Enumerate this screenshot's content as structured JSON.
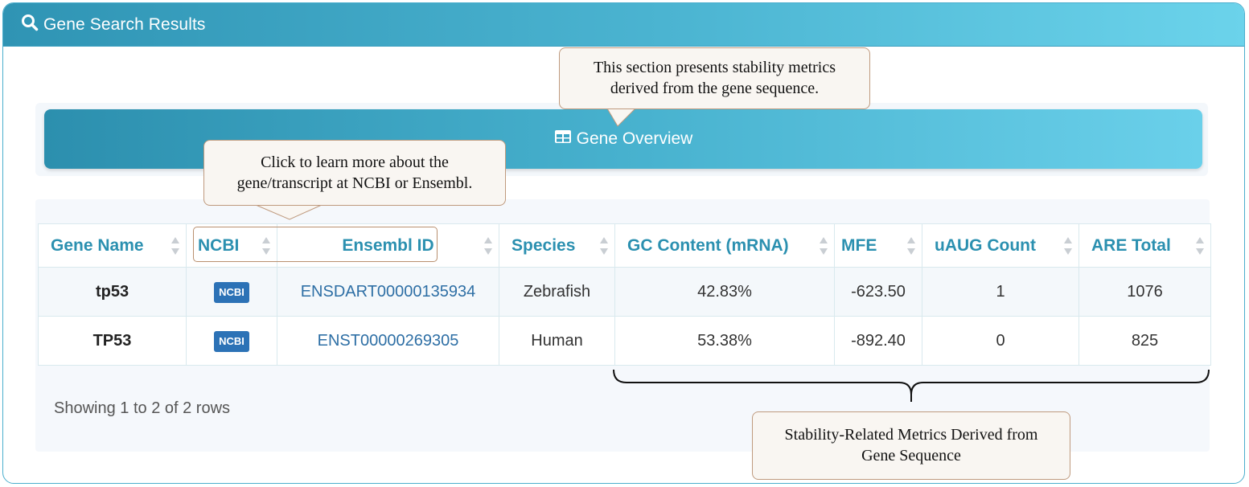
{
  "header": {
    "title": "Gene Search Results",
    "icon": "search-icon"
  },
  "overview": {
    "label": "Gene Overview",
    "icon": "table-icon"
  },
  "table": {
    "columns": [
      "Gene Name",
      "NCBI",
      "Ensembl ID",
      "Species",
      "GC Content (mRNA)",
      "MFE",
      "uAUG Count",
      "ARE Total"
    ],
    "rows": [
      {
        "gene": "tp53",
        "ncbi": "NCBI",
        "ensembl": "ENSDART00000135934",
        "species": "Zebrafish",
        "gc": "42.83%",
        "mfe": "-623.50",
        "uaug": "1",
        "are": "1076"
      },
      {
        "gene": "TP53",
        "ncbi": "NCBI",
        "ensembl": "ENST00000269305",
        "species": "Human",
        "gc": "53.38%",
        "mfe": "-892.40",
        "uaug": "0",
        "are": "825"
      }
    ]
  },
  "footer": {
    "pagination_text": "Showing 1 to 2 of 2 rows"
  },
  "callouts": {
    "overview_note": "This section presents stability metrics derived from the gene sequence.",
    "link_note": "Click to learn more about the gene/transcript at NCBI or Ensembl.",
    "metrics_note": "Stability-Related Metrics Derived from Gene Sequence"
  },
  "colors": {
    "header_start": "#2f94b4",
    "header_end": "#6bd3eb",
    "link": "#2e6fa5",
    "badge": "#2c72b6",
    "column_header": "#2b90b0"
  }
}
